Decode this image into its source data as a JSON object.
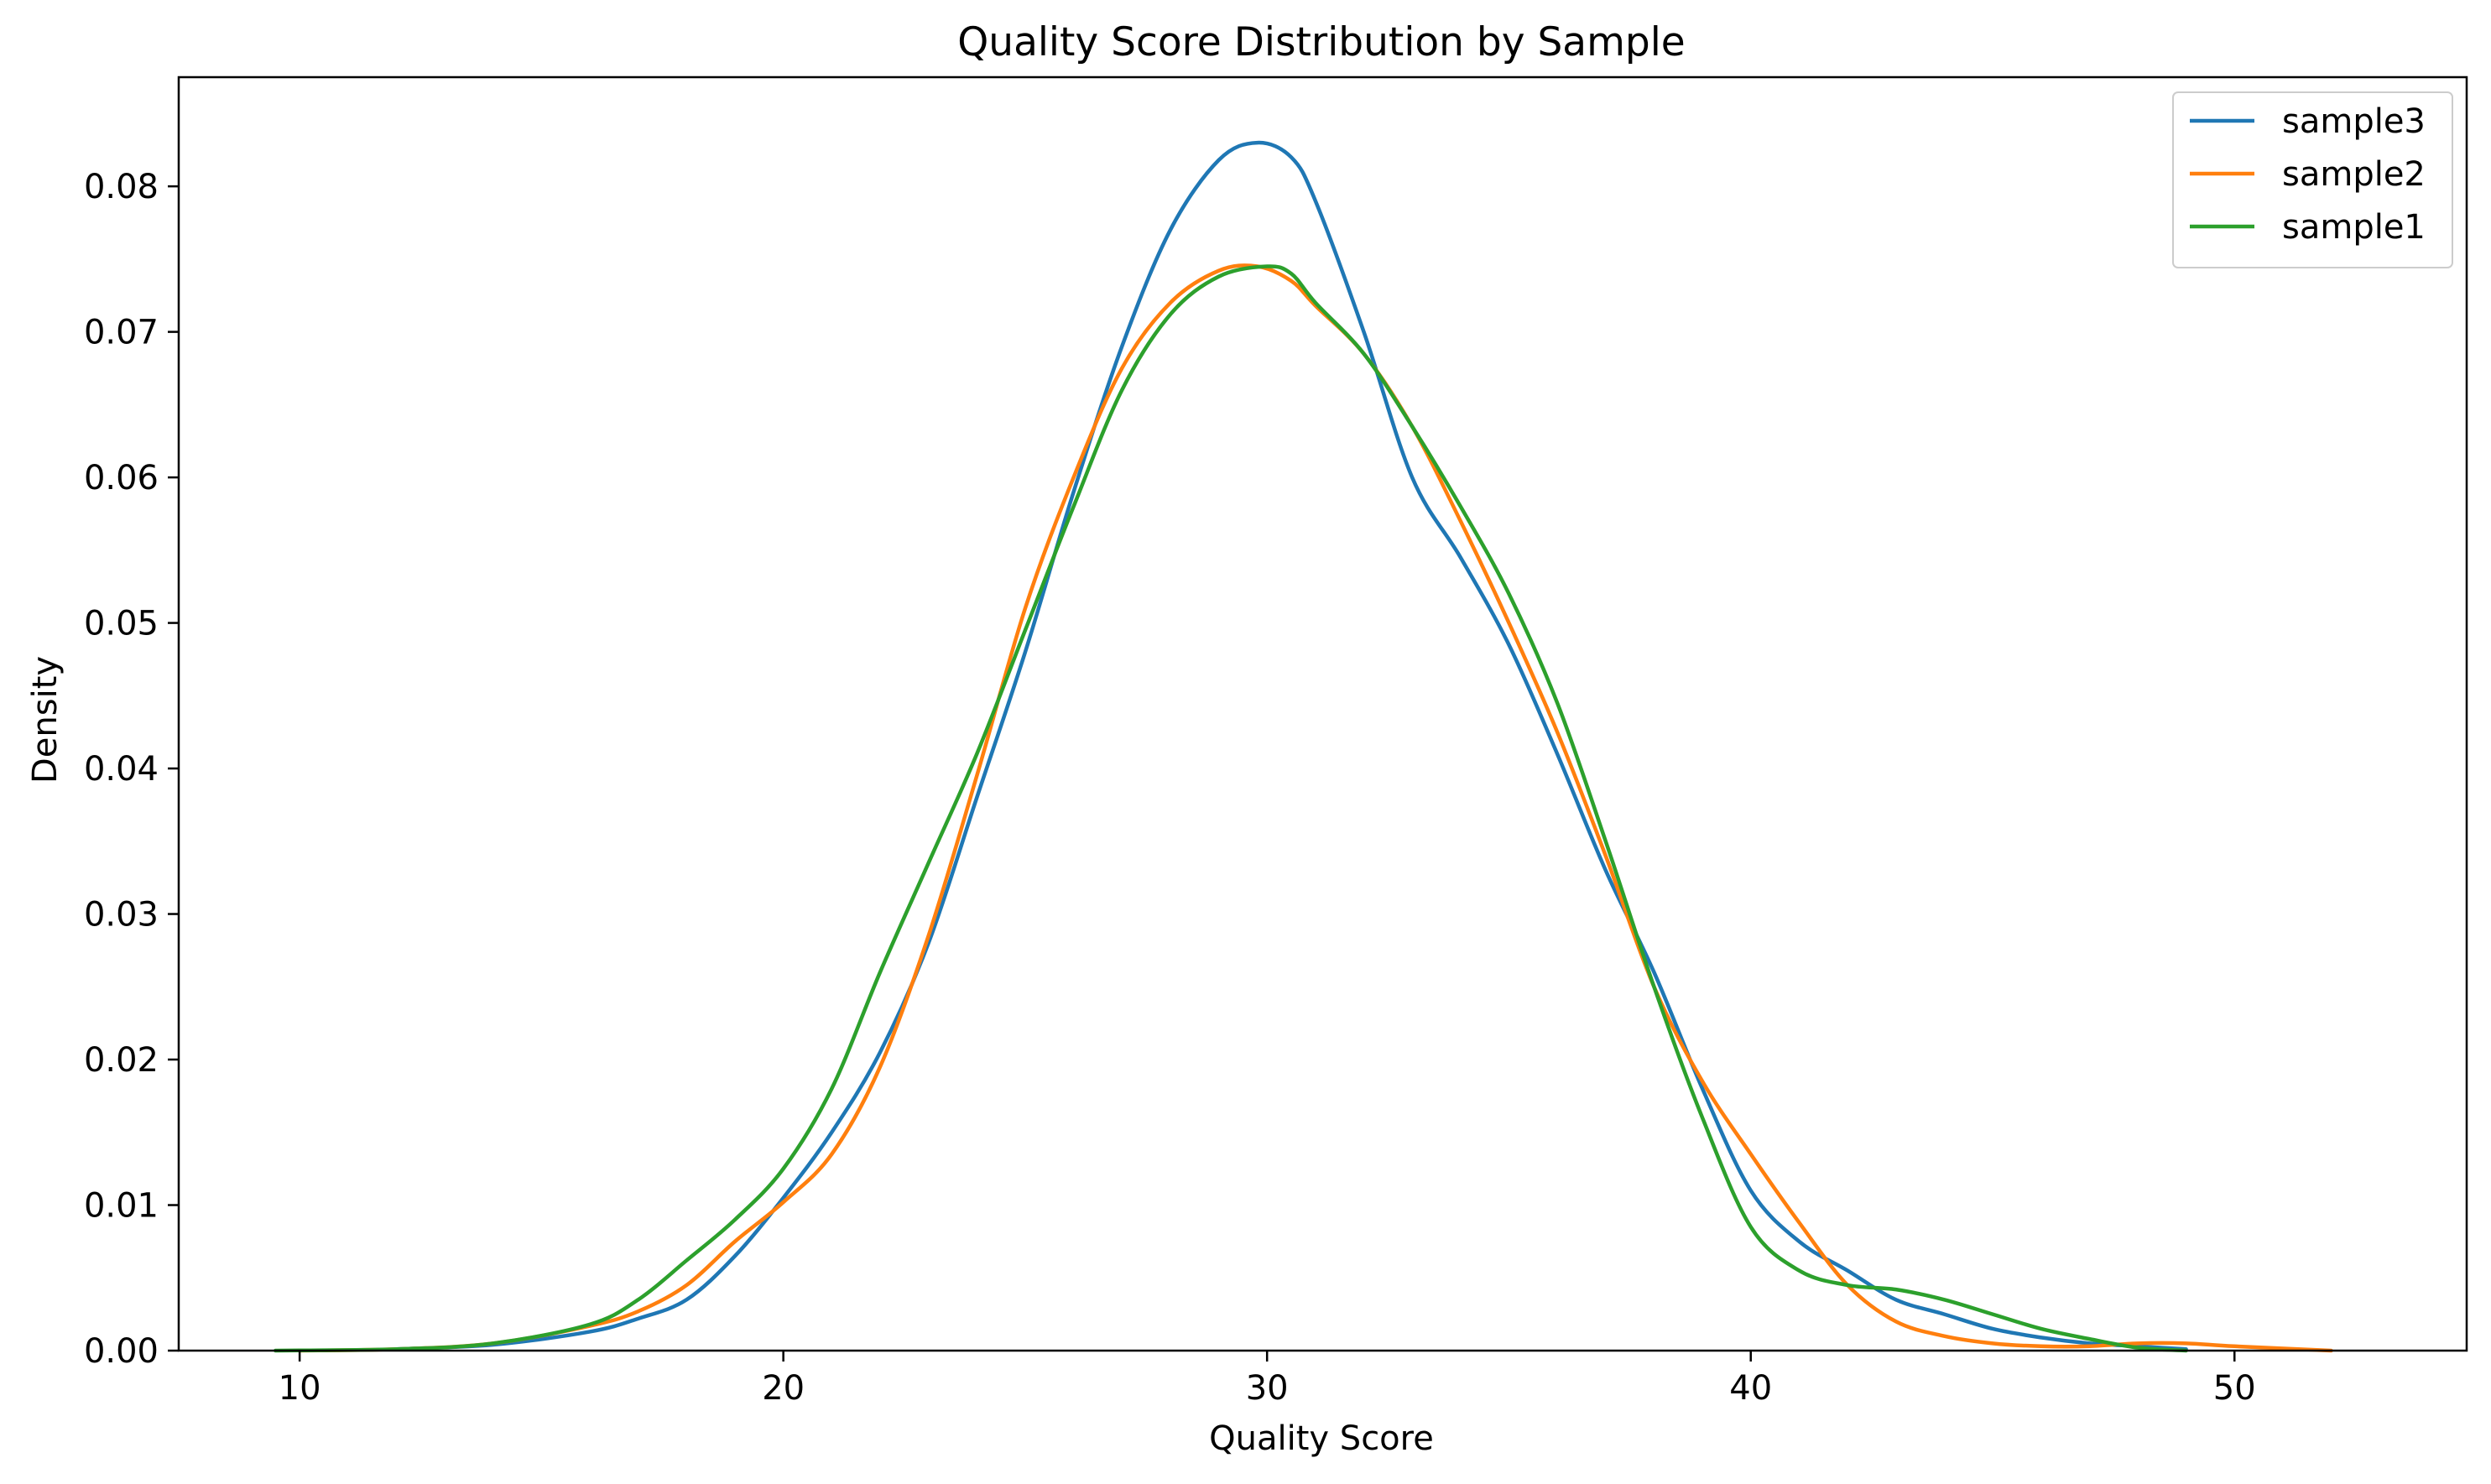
{
  "chart_data": {
    "type": "line",
    "title": "Quality Score Distribution by Sample",
    "xlabel": "Quality Score",
    "ylabel": "Density",
    "xlim": [
      7.5,
      54.8
    ],
    "ylim": [
      0,
      0.0875
    ],
    "xticks": [
      10,
      20,
      30,
      40,
      50
    ],
    "yticks": [
      0,
      0.01,
      0.02,
      0.03,
      0.04,
      0.05,
      0.06,
      0.07,
      0.08
    ],
    "xtick_labels": [
      "10",
      "20",
      "30",
      "40",
      "50"
    ],
    "ytick_labels": [
      "0.00",
      "0.01",
      "0.02",
      "0.03",
      "0.04",
      "0.05",
      "0.06",
      "0.07",
      "0.08"
    ],
    "grid": false,
    "legend_position": "top-right",
    "series": [
      {
        "name": "sample3",
        "color": "#1f77b4",
        "points": [
          [
            12,
            0.0001
          ],
          [
            14,
            0.0004
          ],
          [
            16,
            0.0013
          ],
          [
            17,
            0.0022
          ],
          [
            18,
            0.0035
          ],
          [
            19,
            0.0065
          ],
          [
            20,
            0.0105
          ],
          [
            21,
            0.015
          ],
          [
            22,
            0.0205
          ],
          [
            23,
            0.028
          ],
          [
            24,
            0.038
          ],
          [
            25,
            0.048
          ],
          [
            26,
            0.059
          ],
          [
            27,
            0.069
          ],
          [
            28,
            0.077
          ],
          [
            29,
            0.0818
          ],
          [
            29.8,
            0.083
          ],
          [
            30.5,
            0.082
          ],
          [
            31,
            0.079
          ],
          [
            32,
            0.07
          ],
          [
            33,
            0.06
          ],
          [
            34,
            0.0545
          ],
          [
            35,
            0.0485
          ],
          [
            36,
            0.041
          ],
          [
            37,
            0.033
          ],
          [
            38,
            0.026
          ],
          [
            39,
            0.018
          ],
          [
            40,
            0.011
          ],
          [
            41,
            0.0075
          ],
          [
            42,
            0.0055
          ],
          [
            43,
            0.0035
          ],
          [
            44,
            0.0025
          ],
          [
            45,
            0.0015
          ],
          [
            46,
            0.0009
          ],
          [
            47,
            0.0005
          ],
          [
            48,
            0.0003
          ],
          [
            49,
            0.0001
          ]
        ]
      },
      {
        "name": "sample2",
        "color": "#ff7f0e",
        "points": [
          [
            10,
            0.0
          ],
          [
            12,
            0.0001
          ],
          [
            14,
            0.0005
          ],
          [
            16,
            0.0017
          ],
          [
            17,
            0.0027
          ],
          [
            18,
            0.0045
          ],
          [
            19,
            0.0075
          ],
          [
            20,
            0.0102
          ],
          [
            21,
            0.0135
          ],
          [
            22,
            0.0195
          ],
          [
            23,
            0.0285
          ],
          [
            24,
            0.0395
          ],
          [
            25,
            0.051
          ],
          [
            26,
            0.06
          ],
          [
            27,
            0.0675
          ],
          [
            28,
            0.072
          ],
          [
            29,
            0.0742
          ],
          [
            29.8,
            0.0745
          ],
          [
            30.5,
            0.0735
          ],
          [
            31,
            0.0718
          ],
          [
            32,
            0.0685
          ],
          [
            33,
            0.0635
          ],
          [
            34,
            0.057
          ],
          [
            35,
            0.05
          ],
          [
            36,
            0.0425
          ],
          [
            37,
            0.034
          ],
          [
            38,
            0.025
          ],
          [
            39,
            0.0185
          ],
          [
            40,
            0.0135
          ],
          [
            41,
            0.0088
          ],
          [
            42,
            0.0045
          ],
          [
            43,
            0.002
          ],
          [
            44,
            0.001
          ],
          [
            45,
            0.0005
          ],
          [
            46,
            0.0003
          ],
          [
            47,
            0.0003
          ],
          [
            48,
            0.0005
          ],
          [
            49,
            0.0005
          ],
          [
            50,
            0.0003
          ],
          [
            52,
            0.0
          ]
        ]
      },
      {
        "name": "sample1",
        "color": "#2ca02c",
        "points": [
          [
            9.5,
            0.0
          ],
          [
            12,
            0.0001
          ],
          [
            14,
            0.0005
          ],
          [
            16,
            0.0018
          ],
          [
            17,
            0.0035
          ],
          [
            18,
            0.0062
          ],
          [
            19,
            0.009
          ],
          [
            20,
            0.0125
          ],
          [
            21,
            0.018
          ],
          [
            22,
            0.026
          ],
          [
            23,
            0.0335
          ],
          [
            24,
            0.041
          ],
          [
            25,
            0.0495
          ],
          [
            26,
            0.058
          ],
          [
            27,
            0.066
          ],
          [
            28,
            0.0712
          ],
          [
            29,
            0.0738
          ],
          [
            30,
            0.0745
          ],
          [
            30.5,
            0.074
          ],
          [
            31,
            0.072
          ],
          [
            32,
            0.0685
          ],
          [
            33,
            0.0635
          ],
          [
            34,
            0.058
          ],
          [
            35,
            0.052
          ],
          [
            36,
            0.0445
          ],
          [
            37,
            0.035
          ],
          [
            38,
            0.025
          ],
          [
            39,
            0.016
          ],
          [
            40,
            0.0085
          ],
          [
            41,
            0.0055
          ],
          [
            42,
            0.0045
          ],
          [
            43,
            0.0042
          ],
          [
            44,
            0.0035
          ],
          [
            45,
            0.0025
          ],
          [
            46,
            0.0015
          ],
          [
            47,
            0.0008
          ],
          [
            48,
            0.0002
          ],
          [
            49,
            0.0
          ]
        ]
      }
    ]
  }
}
